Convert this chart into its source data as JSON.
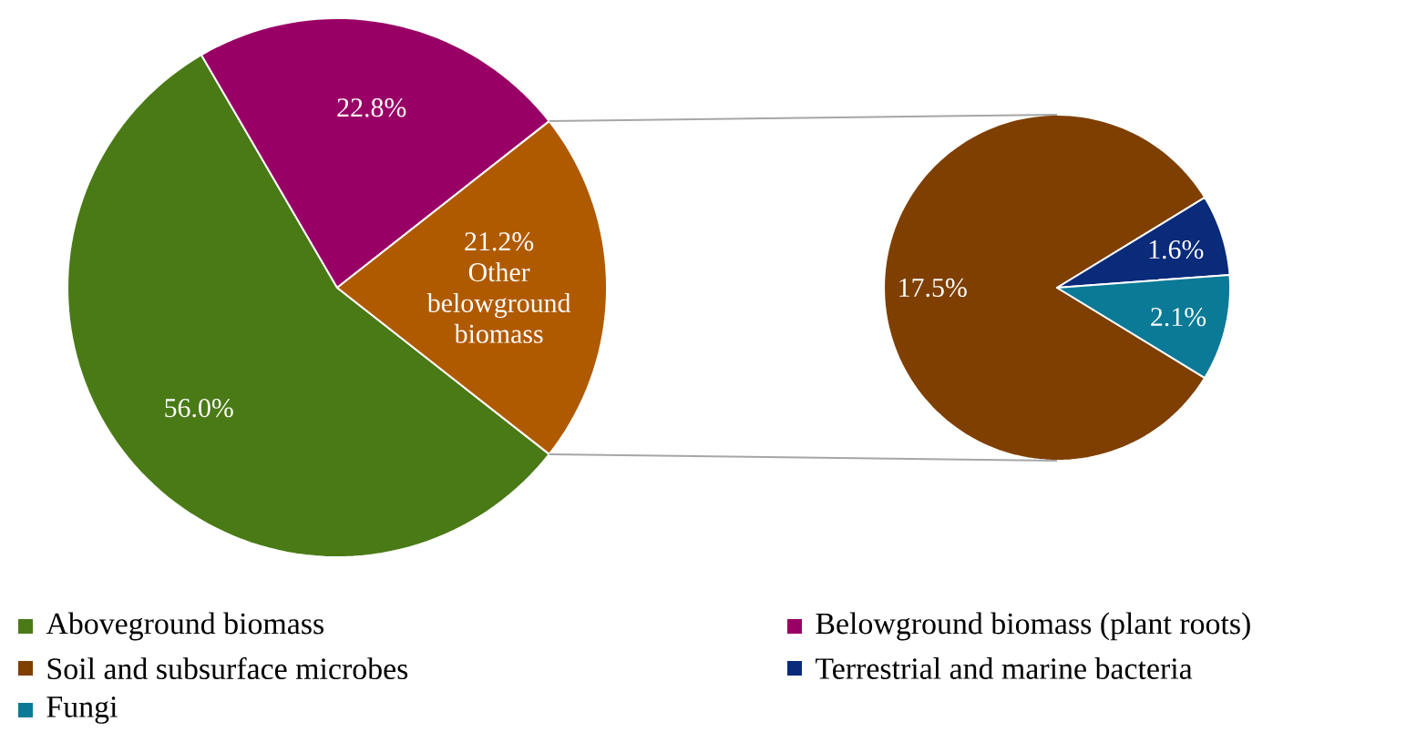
{
  "chart_data": [
    {
      "type": "pie",
      "categories": [
        "Aboveground biomass",
        "Belowground biomass (plant roots)",
        null
      ],
      "values": [
        56.0,
        22.8,
        21.2
      ],
      "colors": [
        "#4a7a16",
        "#990066",
        "#b05a00"
      ],
      "value_labels": [
        "56.0%",
        "22.8%",
        "21.2%"
      ],
      "annotations": [
        "Other belowground biomass"
      ],
      "legend": "bottom"
    },
    {
      "type": "pie",
      "categories": [
        "Soil and subsurface microbes",
        "Terrestrial and marine bacteria",
        "Fungi"
      ],
      "values": [
        17.5,
        1.6,
        2.1
      ],
      "colors": [
        "#7f3f00",
        "#0a2a7a",
        "#0a7a96"
      ],
      "value_labels": [
        "17.5%",
        "1.6%",
        "2.1%"
      ],
      "legend": "bottom"
    }
  ]
}
